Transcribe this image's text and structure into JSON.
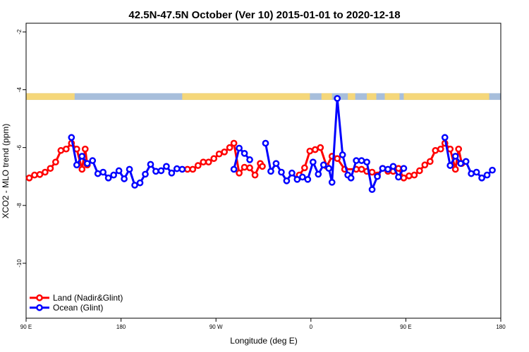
{
  "chart_data": {
    "type": "line",
    "title": "42.5N-47.5N October (Ver 10)   2015-01-01 to 2020-12-18",
    "xlabel": "Longitude (deg E)",
    "ylabel": "XCO2 - MLO trend (ppm)",
    "xlim": [
      90,
      540
    ],
    "ylim": [
      -11.9,
      -1.7
    ],
    "x_ticks": [
      {
        "value": 90,
        "label": "90 E"
      },
      {
        "value": 180,
        "label": "180"
      },
      {
        "value": 270,
        "label": "90 W"
      },
      {
        "value": 360,
        "label": "0"
      },
      {
        "value": 450,
        "label": "90 E"
      },
      {
        "value": 540,
        "label": "180"
      }
    ],
    "y_ticks": [
      {
        "value": -2,
        "label": "-2"
      },
      {
        "value": -4,
        "label": "-4"
      },
      {
        "value": -6,
        "label": "-6"
      },
      {
        "value": -8,
        "label": "-8"
      },
      {
        "value": -10,
        "label": "-10"
      }
    ],
    "land_mask_band": {
      "y_range": [
        -4.35,
        -4.12
      ],
      "land_color": "#f5d77a",
      "ocean_color": "#a7bedb",
      "land_intervals": [
        [
          90,
          136
        ],
        [
          238,
          359
        ],
        [
          370,
          380
        ],
        [
          395,
          402
        ],
        [
          413,
          422
        ],
        [
          430,
          444
        ],
        [
          448,
          529
        ]
      ]
    },
    "legend": {
      "placement": "bottom-left"
    },
    "series": [
      {
        "name": "Land (Nadir&Glint)",
        "color": "#ff0000",
        "points": [
          [
            93,
            -7.05
          ],
          [
            98,
            -6.95
          ],
          [
            103,
            -6.93
          ],
          [
            108,
            -6.85
          ],
          [
            113,
            -6.72
          ],
          [
            118,
            -6.5
          ],
          [
            123,
            -6.1
          ],
          [
            128,
            -6.05
          ],
          [
            133,
            -5.85
          ],
          [
            138,
            -6.05
          ],
          [
            143,
            -6.75
          ],
          [
            146,
            -6.05
          ],
          [
            148,
            -6.6
          ],
          [
            243,
            -6.75
          ],
          [
            248,
            -6.75
          ],
          [
            253,
            -6.62
          ],
          [
            258,
            -6.5
          ],
          [
            263,
            -6.5
          ],
          [
            268,
            -6.38
          ],
          [
            273,
            -6.22
          ],
          [
            278,
            -6.15
          ],
          [
            283,
            -6.0
          ],
          [
            287,
            -5.85
          ],
          [
            292,
            -6.88
          ],
          [
            297,
            -6.68
          ],
          [
            302,
            -6.7
          ],
          [
            307,
            -6.95
          ],
          [
            312,
            -6.55
          ],
          [
            314,
            -6.65
          ],
          [
            349,
            -6.95
          ],
          [
            354,
            -6.7
          ],
          [
            359,
            -6.12
          ],
          [
            364,
            -6.07
          ],
          [
            369,
            -6.0
          ],
          [
            375,
            -6.65
          ],
          [
            380,
            -6.3
          ],
          [
            385,
            -6.38
          ],
          [
            392,
            -6.75
          ],
          [
            403,
            -6.75
          ],
          [
            408,
            -6.75
          ],
          [
            413,
            -6.82
          ],
          [
            418,
            -6.85
          ],
          [
            423,
            -6.95
          ],
          [
            428,
            -6.72
          ],
          [
            433,
            -6.82
          ],
          [
            438,
            -6.82
          ],
          [
            443,
            -6.72
          ],
          [
            448,
            -7.05
          ],
          [
            453,
            -6.98
          ],
          [
            458,
            -6.95
          ],
          [
            463,
            -6.8
          ],
          [
            468,
            -6.6
          ],
          [
            473,
            -6.48
          ],
          [
            478,
            -6.1
          ],
          [
            483,
            -6.05
          ],
          [
            487,
            -5.85
          ],
          [
            492,
            -6.05
          ],
          [
            497,
            -6.75
          ],
          [
            500,
            -6.05
          ],
          [
            503,
            -6.55
          ]
        ]
      },
      {
        "name": "Ocean (Glint)",
        "color": "#0000ff",
        "points": [
          [
            133,
            -5.65
          ],
          [
            138,
            -6.6
          ],
          [
            143,
            -6.3
          ],
          [
            148,
            -6.55
          ],
          [
            153,
            -6.45
          ],
          [
            158,
            -6.9
          ],
          [
            163,
            -6.85
          ],
          [
            168,
            -7.05
          ],
          [
            173,
            -6.95
          ],
          [
            178,
            -6.8
          ],
          [
            183,
            -7.08
          ],
          [
            188,
            -6.75
          ],
          [
            193,
            -7.3
          ],
          [
            198,
            -7.22
          ],
          [
            203,
            -6.92
          ],
          [
            208,
            -6.58
          ],
          [
            213,
            -6.82
          ],
          [
            218,
            -6.8
          ],
          [
            223,
            -6.65
          ],
          [
            228,
            -6.88
          ],
          [
            233,
            -6.73
          ],
          [
            238,
            -6.75
          ],
          [
            287,
            -6.75
          ],
          [
            292,
            -6.02
          ],
          [
            297,
            -6.2
          ],
          [
            302,
            -6.42
          ],
          [
            317,
            -5.85
          ],
          [
            322,
            -6.82
          ],
          [
            327,
            -6.55
          ],
          [
            332,
            -6.85
          ],
          [
            337,
            -7.15
          ],
          [
            342,
            -6.88
          ],
          [
            347,
            -7.1
          ],
          [
            352,
            -7.02
          ],
          [
            357,
            -7.1
          ],
          [
            362,
            -6.5
          ],
          [
            367,
            -6.92
          ],
          [
            372,
            -6.6
          ],
          [
            377,
            -6.72
          ],
          [
            380,
            -7.2
          ],
          [
            385,
            -4.3
          ],
          [
            390,
            -6.25
          ],
          [
            395,
            -6.95
          ],
          [
            398,
            -7.05
          ],
          [
            403,
            -6.45
          ],
          [
            408,
            -6.45
          ],
          [
            413,
            -6.5
          ],
          [
            418,
            -7.45
          ],
          [
            423,
            -7.0
          ],
          [
            428,
            -6.72
          ],
          [
            433,
            -6.75
          ],
          [
            438,
            -6.65
          ],
          [
            443,
            -7.02
          ],
          [
            448,
            -6.72
          ],
          [
            487,
            -5.65
          ],
          [
            492,
            -6.62
          ],
          [
            497,
            -6.3
          ],
          [
            502,
            -6.55
          ],
          [
            507,
            -6.48
          ],
          [
            512,
            -6.9
          ],
          [
            517,
            -6.85
          ],
          [
            522,
            -7.05
          ],
          [
            527,
            -6.95
          ],
          [
            532,
            -6.78
          ]
        ]
      }
    ]
  }
}
